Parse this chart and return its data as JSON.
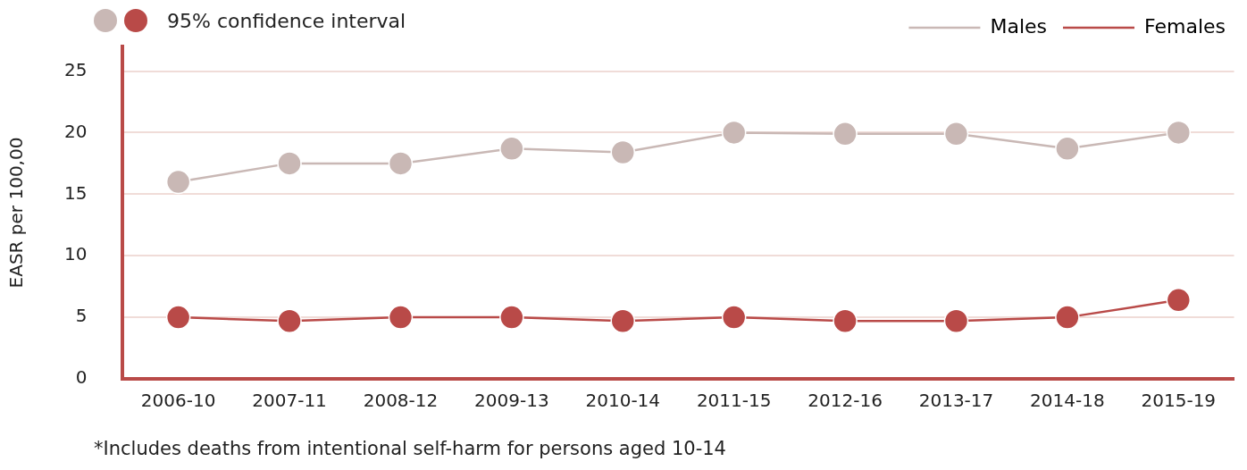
{
  "chart_data": {
    "type": "line",
    "ylabel": "EASR per 100,00",
    "categories": [
      "2006-10",
      "2007-11",
      "2008-12",
      "2009-13",
      "2010-14",
      "2011-15",
      "2012-16",
      "2013-17",
      "2014-18",
      "2015-19"
    ],
    "series": [
      {
        "name": "Males",
        "color": "#c9b8b5",
        "values": [
          16,
          17.5,
          17.5,
          18.7,
          18.4,
          20,
          19.9,
          19.9,
          18.7,
          20
        ]
      },
      {
        "name": "Females",
        "color": "#b94a48",
        "values": [
          5,
          4.7,
          5,
          5,
          4.7,
          5,
          4.7,
          4.7,
          5,
          6.4
        ]
      }
    ],
    "ylim": [
      0,
      27
    ],
    "yticks": [
      0,
      5,
      10,
      15,
      20,
      25
    ],
    "grid": "y",
    "legend": "top right",
    "marker": "circle",
    "line_style": "solid",
    "annotations": [
      "95% confidence interval",
      "*Includes deaths from intentional self-harm for persons aged 10-14"
    ]
  }
}
